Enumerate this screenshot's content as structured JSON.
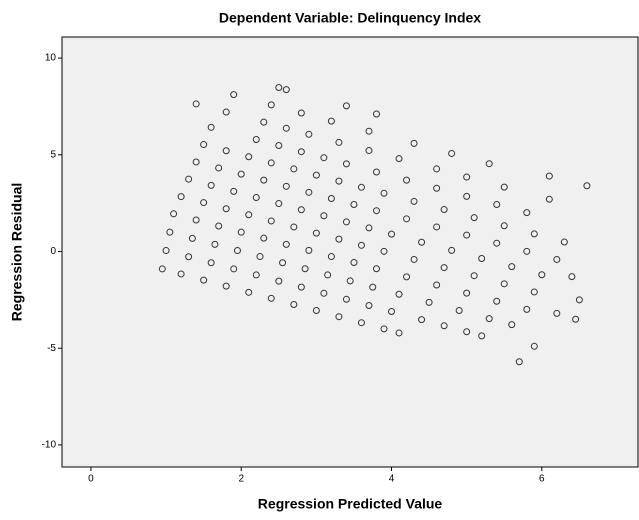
{
  "chart_data": {
    "type": "scatter",
    "title": "Dependent Variable: Delinquency Index",
    "x_label": "Regression Predicted Value",
    "y_label": "Regression Residual",
    "xlim": [
      -0.385,
      7.28
    ],
    "ylim": [
      -11.14,
      11.09
    ],
    "xticks": [
      0,
      2,
      4,
      6
    ],
    "yticks": [
      -10,
      -5,
      0,
      5,
      10
    ],
    "color": "#333333",
    "background": "#f0f0f0",
    "x": [
      0.95,
      1.2,
      1.5,
      1.8,
      2.1,
      2.4,
      2.7,
      3.0,
      3.3,
      3.6,
      3.9,
      4.1,
      1.0,
      1.3,
      1.6,
      1.9,
      2.2,
      2.5,
      2.8,
      3.1,
      3.4,
      3.7,
      4.0,
      4.4,
      4.7,
      5.0,
      5.2,
      1.05,
      1.35,
      1.65,
      1.95,
      2.25,
      2.55,
      2.85,
      3.15,
      3.45,
      3.75,
      4.1,
      4.5,
      4.9,
      5.3,
      5.6,
      1.1,
      1.4,
      1.7,
      2.0,
      2.3,
      2.6,
      2.9,
      3.2,
      3.5,
      3.8,
      4.2,
      4.6,
      5.0,
      5.4,
      5.8,
      1.2,
      1.5,
      1.8,
      2.1,
      2.4,
      2.7,
      3.0,
      3.3,
      3.6,
      3.9,
      4.3,
      4.7,
      5.1,
      5.5,
      5.9,
      1.3,
      1.6,
      1.9,
      2.2,
      2.5,
      2.8,
      3.1,
      3.4,
      3.7,
      4.0,
      4.4,
      4.8,
      5.2,
      5.6,
      6.0,
      1.4,
      1.7,
      2.0,
      2.3,
      2.6,
      2.9,
      3.2,
      3.5,
      3.8,
      4.2,
      4.6,
      5.0,
      5.4,
      5.8,
      6.2,
      1.5,
      1.8,
      2.1,
      2.4,
      2.7,
      3.0,
      3.3,
      3.6,
      3.9,
      4.3,
      4.7,
      5.1,
      5.5,
      5.9,
      6.3,
      1.6,
      2.2,
      2.5,
      2.8,
      3.1,
      3.4,
      3.8,
      4.2,
      4.6,
      5.0,
      5.4,
      5.8,
      1.4,
      1.8,
      2.3,
      2.6,
      2.9,
      3.3,
      3.7,
      4.1,
      4.6,
      5.0,
      5.5,
      6.1,
      1.9,
      2.4,
      2.8,
      3.2,
      3.7,
      4.3,
      4.8,
      5.3,
      2.5,
      2.6,
      3.4,
      3.8,
      6.6,
      6.1,
      6.4,
      6.5,
      5.7,
      5.9,
      6.2,
      6.45
    ],
    "values": [
      -0.9,
      -1.16,
      -1.48,
      -1.79,
      -2.11,
      -2.42,
      -2.74,
      -3.05,
      -3.37,
      -3.68,
      -4.0,
      -4.21,
      0.05,
      -0.27,
      -0.58,
      -0.9,
      -1.21,
      -1.53,
      -1.84,
      -2.16,
      -2.47,
      -2.79,
      -3.1,
      -3.52,
      -3.84,
      -4.15,
      -4.36,
      1.0,
      0.68,
      0.37,
      0.05,
      -0.26,
      -0.58,
      -0.89,
      -1.21,
      -1.52,
      -1.84,
      -2.21,
      -2.63,
      -3.05,
      -3.47,
      -3.78,
      1.95,
      1.63,
      1.32,
      1.0,
      0.69,
      0.37,
      0.06,
      -0.26,
      -0.57,
      -0.89,
      -1.31,
      -1.73,
      -2.15,
      -2.57,
      -2.99,
      2.84,
      2.53,
      2.21,
      1.9,
      1.58,
      1.27,
      0.95,
      0.64,
      0.32,
      0.01,
      -0.41,
      -0.83,
      -1.25,
      -1.67,
      -2.09,
      3.74,
      3.42,
      3.11,
      2.79,
      2.48,
      2.16,
      1.85,
      1.53,
      1.22,
      0.9,
      0.48,
      0.06,
      -0.36,
      -0.78,
      -1.2,
      4.63,
      4.32,
      4.0,
      3.69,
      3.37,
      3.06,
      2.74,
      2.43,
      2.11,
      1.69,
      1.27,
      0.85,
      0.43,
      0.01,
      -0.41,
      5.53,
      5.21,
      4.9,
      4.58,
      4.27,
      3.95,
      3.64,
      3.32,
      3.01,
      2.59,
      2.17,
      1.75,
      1.33,
      0.91,
      0.49,
      6.42,
      5.79,
      5.48,
      5.16,
      4.85,
      4.53,
      4.11,
      3.69,
      3.27,
      2.85,
      2.43,
      2.01,
      7.63,
      7.21,
      6.69,
      6.37,
      6.06,
      5.64,
      5.22,
      4.8,
      4.27,
      3.85,
      3.33,
      2.7,
      8.11,
      7.58,
      7.16,
      6.74,
      6.22,
      5.59,
      5.07,
      4.54,
      8.48,
      8.37,
      7.53,
      7.11,
      3.4,
      3.9,
      -1.3,
      -2.5,
      -5.7,
      -4.9,
      -3.2,
      -3.5
    ]
  }
}
